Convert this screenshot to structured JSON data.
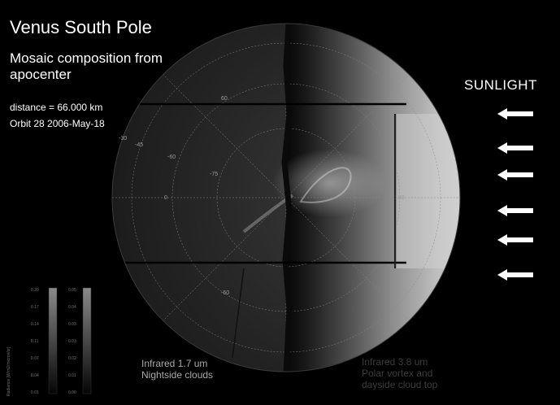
{
  "title": "Venus South Pole",
  "subtitle": "Mosaic composition from apocenter",
  "distance": "distance = 66.000 km",
  "orbit": "Orbit 28  2006-May-18",
  "sunlight_label": "SUNLIGHT",
  "grid_labels": {
    "lat_30": "-30",
    "lat_45": "-45",
    "lat_60": "-60",
    "lat_75": "-75",
    "lon_0": "0",
    "lon_180": "180",
    "top_60": "60",
    "bottom_60": "-60"
  },
  "caption_left": {
    "line1": "Infrared 1.7 um",
    "line2": "Nightside clouds"
  },
  "caption_right": {
    "line1": "Infrared 3.8 um",
    "line2": "Polar vortex and",
    "line3": "dayside cloud top"
  },
  "colorbar": {
    "axis_label": "Radiance [W/m2/micron/sr]",
    "ticks_left": [
      "0.20",
      "0.17",
      "0.14",
      "0.11",
      "0.07",
      "0.04",
      "0.01"
    ],
    "ticks_right": [
      "0.05",
      "0.04",
      "0.03",
      "0.03",
      "0.02",
      "0.01",
      "0.00"
    ]
  },
  "colors": {
    "background": "#000000",
    "text": "#ffffff",
    "arrow": "#ffffff"
  }
}
